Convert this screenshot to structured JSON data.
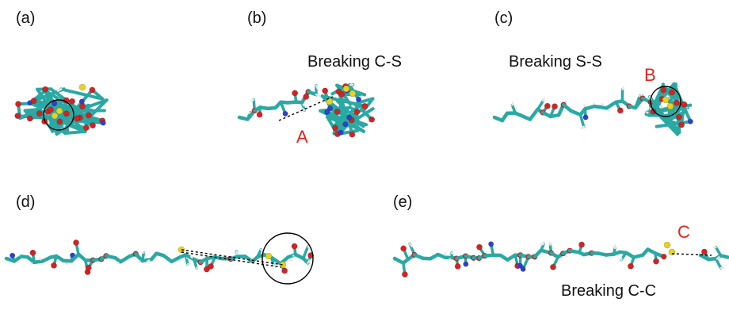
{
  "panels": [
    {
      "id": "a",
      "label": "(a)"
    },
    {
      "id": "b",
      "label": "(b)",
      "annotation": "Breaking C-S",
      "marker": "A"
    },
    {
      "id": "c",
      "label": "(c)",
      "annotation": "Breaking S-S",
      "marker": "B"
    },
    {
      "id": "d",
      "label": "(d)"
    },
    {
      "id": "e",
      "label": "(e)",
      "annotation": "Breaking C-C",
      "marker": "C"
    }
  ],
  "colors": {
    "carbon": "#2aa9a4",
    "hydrogen": "#e6e6e6",
    "oxygen": "#d42222",
    "nitrogen": "#2f3fd0",
    "sulfur": "#e8d21e",
    "marker": "#e8211c"
  }
}
